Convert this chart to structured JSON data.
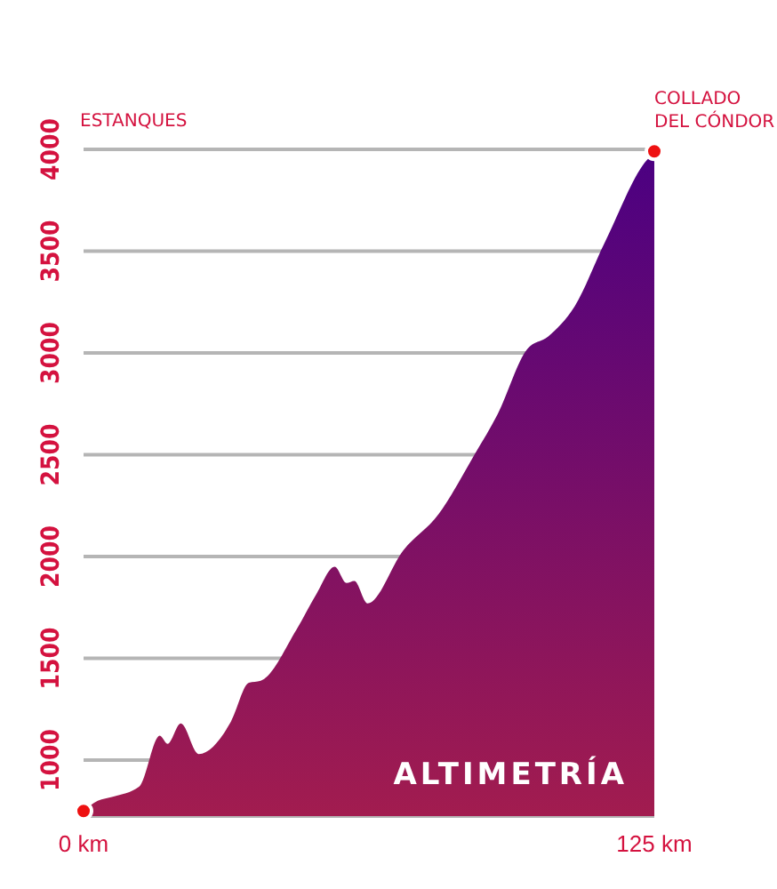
{
  "chart_data": {
    "type": "area",
    "title": "ALTIMETRÍA",
    "x": [
      0,
      3.1,
      6.4,
      12.2,
      16.7,
      18.4,
      21.3,
      25.2,
      32.3,
      36.2,
      38.8,
      46.6,
      51.1,
      55,
      57.6,
      59.3,
      62.2,
      70,
      77.8,
      85.6,
      90.7,
      97.2,
      101.7,
      107.6,
      114.1,
      123.9,
      125
    ],
    "series": [
      {
        "color": "#4b0082",
        "values": [
          750,
          800,
          820,
          870,
          1120,
          1080,
          1180,
          1030,
          1190,
          1380,
          1390,
          1640,
          1820,
          1950,
          1870,
          1880,
          1770,
          2030,
          2210,
          2500,
          2700,
          3020,
          3080,
          3230,
          3540,
          3960,
          3980
        ]
      }
    ],
    "xlim": [
      0,
      125
    ],
    "xticks": [
      {
        "value": 0,
        "label": "0 km"
      },
      {
        "value": 125,
        "label": "125 km"
      }
    ],
    "ylim": [
      725,
      4000
    ],
    "yticks": [
      1000,
      1500,
      2000,
      2500,
      3000,
      3500,
      4000
    ],
    "grid": "y",
    "annotations": [
      "ESTANQUES",
      {
        "text": "COLLADO DEL CÓNDOR",
        "x": 125,
        "y": 3990
      }
    ]
  }
}
